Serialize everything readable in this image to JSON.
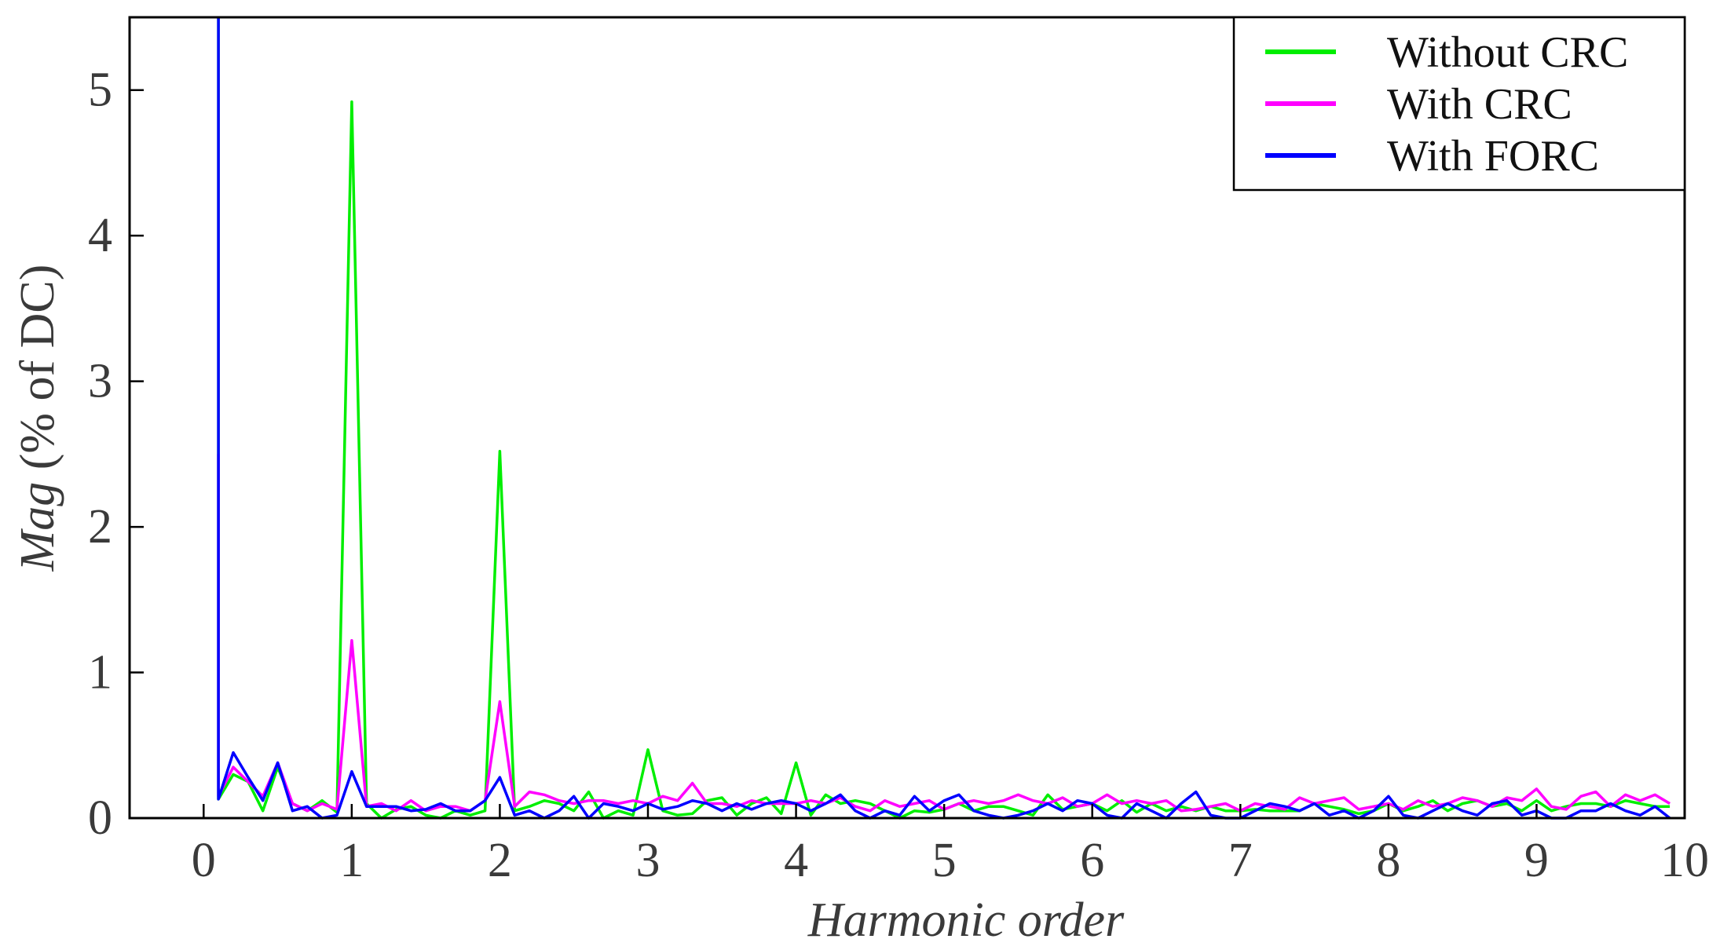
{
  "chart_data": {
    "type": "line",
    "title": "",
    "xlabel": "Harmonic order",
    "ylabel_italic": "Mag",
    "ylabel_rest": " (% of DC)",
    "xlim": [
      -0.5,
      10
    ],
    "ylim": [
      0,
      5.5
    ],
    "xticks": [
      0,
      1,
      2,
      3,
      4,
      5,
      6,
      7,
      8,
      9,
      10
    ],
    "yticks": [
      0,
      1,
      2,
      3,
      4,
      5
    ],
    "legend_position": "top-right",
    "x": [
      0.1,
      0.2,
      0.3,
      0.4,
      0.5,
      0.6,
      0.7,
      0.8,
      0.9,
      1.0,
      1.1,
      1.2,
      1.3,
      1.4,
      1.5,
      1.6,
      1.7,
      1.8,
      1.9,
      2.0,
      2.1,
      2.2,
      2.3,
      2.4,
      2.5,
      2.6,
      2.7,
      2.8,
      2.9,
      3.0,
      3.1,
      3.2,
      3.3,
      3.4,
      3.5,
      3.6,
      3.7,
      3.8,
      3.9,
      4.0,
      4.1,
      4.2,
      4.3,
      4.4,
      4.5,
      4.6,
      4.7,
      4.8,
      4.9,
      5.0,
      5.1,
      5.2,
      5.3,
      5.4,
      5.5,
      5.6,
      5.7,
      5.8,
      5.9,
      6.0,
      6.1,
      6.2,
      6.3,
      6.4,
      6.5,
      6.6,
      6.7,
      6.8,
      6.9,
      7.0,
      7.1,
      7.2,
      7.3,
      7.4,
      7.5,
      7.6,
      7.7,
      7.8,
      7.9,
      8.0,
      8.1,
      8.2,
      8.3,
      8.4,
      8.5,
      8.6,
      8.7,
      8.8,
      8.9,
      9.0,
      9.1,
      9.2,
      9.3,
      9.4,
      9.5,
      9.6,
      9.7,
      9.8,
      9.9
    ],
    "series": [
      {
        "name": "Without CRC",
        "color": "#00ee00",
        "dc_spike": 5.5,
        "values": [
          0.13,
          0.3,
          0.25,
          0.05,
          0.35,
          0.1,
          0.05,
          0.12,
          0.04,
          4.92,
          0.1,
          0.0,
          0.06,
          0.08,
          0.02,
          0.0,
          0.05,
          0.02,
          0.05,
          2.52,
          0.05,
          0.08,
          0.12,
          0.1,
          0.05,
          0.18,
          0.0,
          0.05,
          0.02,
          0.47,
          0.05,
          0.02,
          0.03,
          0.12,
          0.14,
          0.02,
          0.1,
          0.14,
          0.03,
          0.38,
          0.02,
          0.16,
          0.1,
          0.12,
          0.1,
          0.05,
          0.0,
          0.05,
          0.04,
          0.06,
          0.1,
          0.05,
          0.08,
          0.08,
          0.05,
          0.02,
          0.16,
          0.06,
          0.08,
          0.1,
          0.05,
          0.12,
          0.04,
          0.1,
          0.05,
          0.08,
          0.05,
          0.08,
          0.05,
          0.05,
          0.06,
          0.05,
          0.05,
          0.05,
          0.1,
          0.08,
          0.06,
          0.03,
          0.05,
          0.1,
          0.05,
          0.08,
          0.12,
          0.05,
          0.1,
          0.12,
          0.08,
          0.1,
          0.05,
          0.12,
          0.05,
          0.08,
          0.1,
          0.1,
          0.08,
          0.12,
          0.1,
          0.08,
          0.08
        ]
      },
      {
        "name": "With CRC",
        "color": "#ff00ff",
        "dc_spike": 2.5,
        "values": [
          0.15,
          0.35,
          0.25,
          0.15,
          0.38,
          0.1,
          0.05,
          0.1,
          0.06,
          1.22,
          0.08,
          0.1,
          0.05,
          0.12,
          0.05,
          0.08,
          0.08,
          0.05,
          0.12,
          0.8,
          0.08,
          0.18,
          0.16,
          0.12,
          0.1,
          0.12,
          0.12,
          0.1,
          0.12,
          0.1,
          0.15,
          0.12,
          0.24,
          0.1,
          0.1,
          0.08,
          0.12,
          0.1,
          0.1,
          0.1,
          0.12,
          0.1,
          0.14,
          0.08,
          0.05,
          0.12,
          0.08,
          0.1,
          0.12,
          0.06,
          0.1,
          0.12,
          0.1,
          0.12,
          0.16,
          0.12,
          0.1,
          0.14,
          0.08,
          0.1,
          0.16,
          0.1,
          0.12,
          0.1,
          0.12,
          0.05,
          0.06,
          0.08,
          0.1,
          0.05,
          0.1,
          0.08,
          0.06,
          0.14,
          0.1,
          0.12,
          0.14,
          0.06,
          0.08,
          0.1,
          0.06,
          0.12,
          0.08,
          0.1,
          0.14,
          0.12,
          0.08,
          0.14,
          0.12,
          0.2,
          0.08,
          0.06,
          0.15,
          0.18,
          0.08,
          0.16,
          0.12,
          0.16,
          0.1
        ]
      },
      {
        "name": "With FORC",
        "color": "#0000ff",
        "dc_spike": 5.5,
        "values": [
          0.13,
          0.45,
          0.28,
          0.12,
          0.38,
          0.05,
          0.08,
          0.0,
          0.02,
          0.32,
          0.08,
          0.08,
          0.08,
          0.05,
          0.06,
          0.1,
          0.05,
          0.05,
          0.12,
          0.28,
          0.02,
          0.05,
          0.0,
          0.05,
          0.15,
          0.0,
          0.1,
          0.08,
          0.05,
          0.1,
          0.06,
          0.08,
          0.12,
          0.1,
          0.05,
          0.1,
          0.06,
          0.1,
          0.12,
          0.1,
          0.05,
          0.1,
          0.16,
          0.05,
          0.0,
          0.05,
          0.02,
          0.15,
          0.05,
          0.12,
          0.16,
          0.05,
          0.02,
          0.0,
          0.02,
          0.05,
          0.1,
          0.05,
          0.12,
          0.1,
          0.02,
          0.0,
          0.1,
          0.05,
          0.0,
          0.1,
          0.18,
          0.02,
          0.0,
          0.0,
          0.05,
          0.1,
          0.08,
          0.05,
          0.1,
          0.02,
          0.05,
          0.0,
          0.05,
          0.15,
          0.02,
          0.0,
          0.05,
          0.1,
          0.05,
          0.02,
          0.1,
          0.12,
          0.02,
          0.05,
          0.0,
          0.0,
          0.05,
          0.05,
          0.1,
          0.05,
          0.02,
          0.08,
          0.0
        ]
      }
    ]
  }
}
